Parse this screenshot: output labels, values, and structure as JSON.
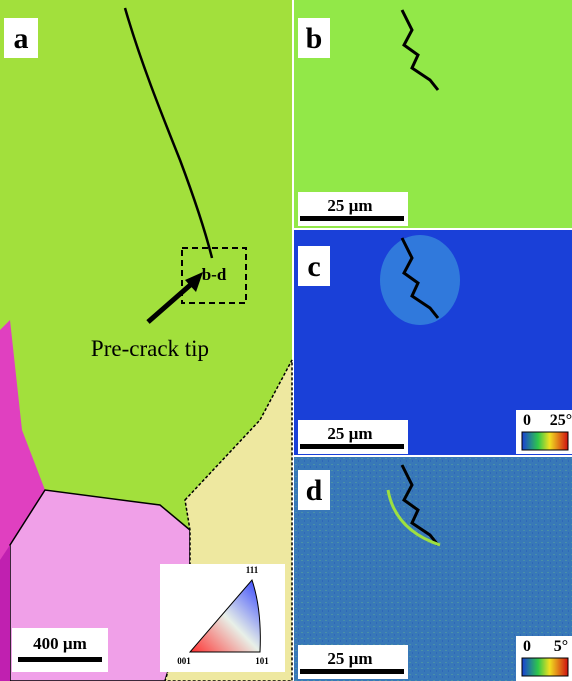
{
  "panels": [
    {
      "label": "a",
      "annotation": "Pre-crack tip",
      "scale_bar": "400 µm",
      "ipf_labels": [
        "111",
        "001",
        "101"
      ]
    },
    {
      "label": "b",
      "scale_bar": "25 µm"
    },
    {
      "label": "c",
      "scale_bar": "25 µm",
      "colorbar": [
        "0",
        "25°"
      ]
    },
    {
      "label": "d",
      "scale_bar": "25 µm",
      "colorbar": [
        "0",
        "5°"
      ]
    }
  ],
  "inset_box_label": "b-d"
}
